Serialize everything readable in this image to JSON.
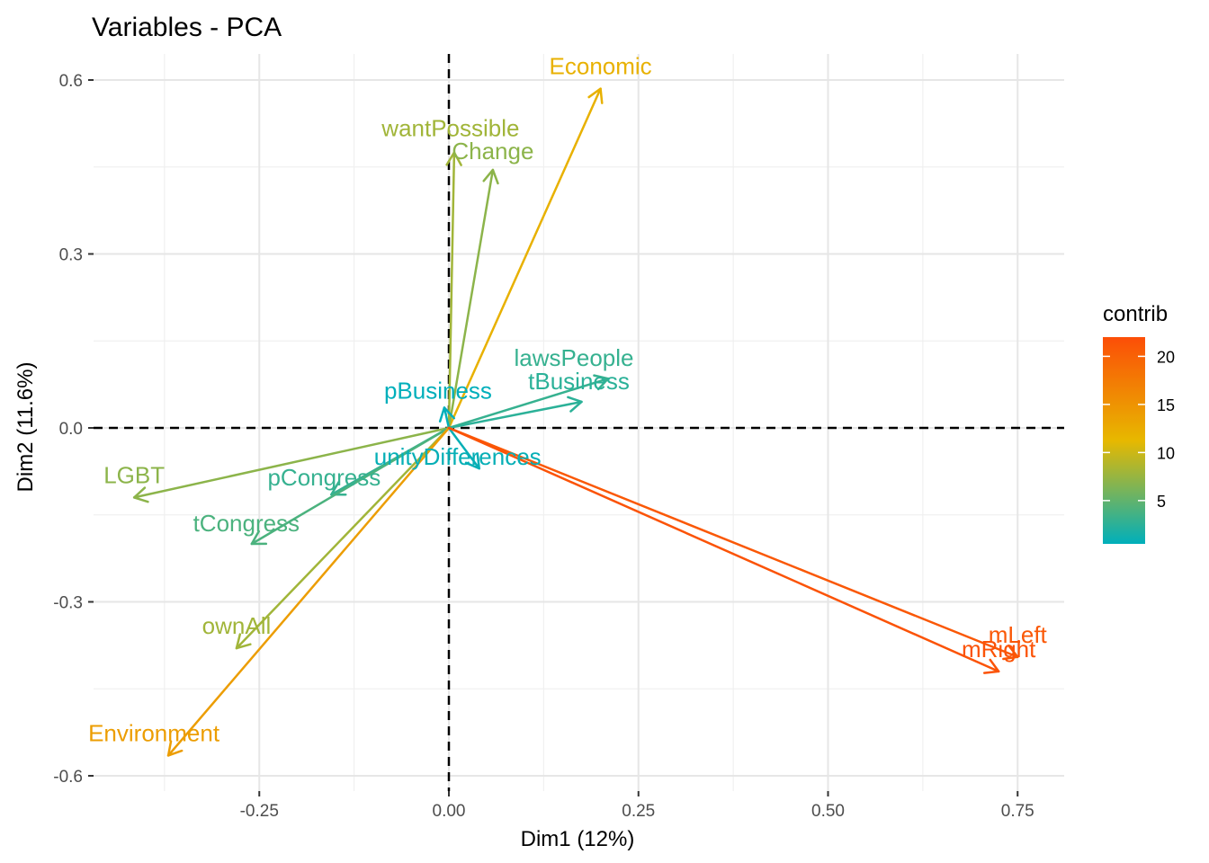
{
  "chart_data": {
    "type": "scatter",
    "subtype": "pca-variable-correlation-plot",
    "title": "Variables - PCA",
    "xlabel": "Dim1 (12%)",
    "ylabel": "Dim2 (11.6%)",
    "xlim": [
      -0.47,
      0.81
    ],
    "ylim": [
      -0.62,
      0.64
    ],
    "x_ticks": [
      -0.25,
      0.0,
      0.25,
      0.5,
      0.75
    ],
    "x_tick_labels": [
      "-0.25",
      "0.00",
      "0.25",
      "0.50",
      "0.75"
    ],
    "y_ticks": [
      -0.6,
      -0.3,
      0.0,
      0.3,
      0.6
    ],
    "y_tick_labels": [
      "-0.6",
      "-0.3",
      "0.0",
      "0.3",
      "0.6"
    ],
    "grid": true,
    "reference_lines": {
      "x": 0,
      "y": 0,
      "style": "dashed"
    },
    "legend": {
      "title": "contrib",
      "placement": "right",
      "type": "gradient",
      "range": [
        0.5,
        22
      ],
      "ticks": [
        5,
        10,
        15,
        20
      ],
      "tick_labels": [
        "5",
        "10",
        "15",
        "20"
      ],
      "colors": [
        "#00AFBB",
        "#E7B800",
        "#FC4E07"
      ]
    },
    "variables": [
      {
        "name": "Economic",
        "x": 0.2,
        "y": 0.585,
        "contrib": 12
      },
      {
        "name": "wantPossible",
        "x": 0.007,
        "y": 0.475,
        "contrib": 8
      },
      {
        "name": "Change",
        "x": 0.058,
        "y": 0.445,
        "contrib": 7
      },
      {
        "name": "lawsPeople",
        "x": 0.21,
        "y": 0.085,
        "contrib": 3
      },
      {
        "name": "tBusiness",
        "x": 0.175,
        "y": 0.045,
        "contrib": 2.5
      },
      {
        "name": "pBusiness",
        "x": -0.006,
        "y": 0.035,
        "contrib": 0.5
      },
      {
        "name": "unityDifferences",
        "x": 0.04,
        "y": -0.07,
        "contrib": 0.8
      },
      {
        "name": "LGBT",
        "x": -0.415,
        "y": -0.12,
        "contrib": 7
      },
      {
        "name": "pCongress",
        "x": -0.155,
        "y": -0.115,
        "contrib": 3
      },
      {
        "name": "tCongress",
        "x": -0.26,
        "y": -0.2,
        "contrib": 4
      },
      {
        "name": "ownAll",
        "x": -0.28,
        "y": -0.38,
        "contrib": 8
      },
      {
        "name": "Environment",
        "x": -0.37,
        "y": -0.565,
        "contrib": 14
      },
      {
        "name": "mLeft",
        "x": 0.75,
        "y": -0.395,
        "contrib": 21
      },
      {
        "name": "mRight",
        "x": 0.725,
        "y": -0.42,
        "contrib": 21.5
      }
    ]
  }
}
